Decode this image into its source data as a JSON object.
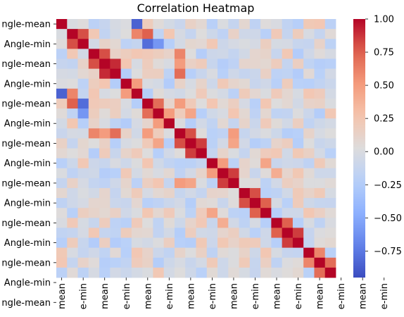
{
  "chart_data": {
    "type": "heatmap",
    "title": "Correlation Heatmap",
    "xlabel": "",
    "ylabel": "",
    "n_rows": 26,
    "n_cols": 26,
    "y_tick_labels": [
      "ngle-mean",
      "Angle-min",
      "ngle-mean",
      "Angle-min",
      "ngle-mean",
      "Angle-min",
      "ngle-mean",
      "Angle-min",
      "ngle-mean",
      "Angle-min",
      "ngle-mean",
      "Angle-min",
      "ngle-mean",
      "Angle-min",
      "ngle-mean",
      "Angle-min"
    ],
    "x_tick_labels": [
      "mean",
      "e-min",
      "mean",
      "e-min",
      "mean",
      "e-min",
      "mean",
      "e-min",
      "mean",
      "e-min",
      "mean",
      "e-min",
      "mean",
      "e-min",
      "mean",
      "e-min"
    ],
    "colorbar": {
      "min": -0.95,
      "max": 1.0,
      "ticks": [
        1.0,
        0.75,
        0.5,
        0.25,
        0.0,
        -0.25,
        -0.5,
        -0.75
      ],
      "tick_labels": [
        "1.00",
        "0.75",
        "0.50",
        "0.25",
        "0.00",
        "−0.25",
        "−0.50",
        "−0.75"
      ],
      "colormap": "coolwarm",
      "low_color": "#3b4cc0",
      "mid_color": "#dddcdc",
      "high_color": "#b40426"
    },
    "highlights": [
      [
        1,
        2,
        0.8
      ],
      [
        2,
        1,
        0.8
      ],
      [
        3,
        4,
        0.8
      ],
      [
        4,
        3,
        0.8
      ],
      [
        4,
        5,
        0.9
      ],
      [
        5,
        4,
        0.9
      ],
      [
        6,
        7,
        0.5
      ],
      [
        7,
        6,
        0.5
      ],
      [
        8,
        9,
        0.7
      ],
      [
        9,
        8,
        0.7
      ],
      [
        9,
        10,
        0.5
      ],
      [
        10,
        9,
        0.5
      ],
      [
        11,
        12,
        0.8
      ],
      [
        12,
        11,
        0.8
      ],
      [
        12,
        13,
        0.85
      ],
      [
        13,
        12,
        0.85
      ],
      [
        14,
        15,
        0.5
      ],
      [
        15,
        14,
        0.5
      ],
      [
        15,
        16,
        0.85
      ],
      [
        16,
        15,
        0.85
      ],
      [
        17,
        18,
        0.8
      ],
      [
        18,
        17,
        0.8
      ],
      [
        18,
        19,
        0.75
      ],
      [
        19,
        18,
        0.75
      ],
      [
        20,
        21,
        0.75
      ],
      [
        21,
        20,
        0.75
      ],
      [
        21,
        22,
        0.85
      ],
      [
        22,
        21,
        0.85
      ],
      [
        23,
        24,
        0.6
      ],
      [
        24,
        23,
        0.6
      ],
      [
        24,
        25,
        0.7
      ],
      [
        25,
        24,
        0.7
      ],
      [
        0,
        7,
        -0.85
      ],
      [
        7,
        0,
        -0.85
      ],
      [
        1,
        8,
        0.75
      ],
      [
        8,
        1,
        0.75
      ],
      [
        2,
        8,
        -0.8
      ],
      [
        8,
        2,
        -0.8
      ],
      [
        2,
        9,
        -0.6
      ],
      [
        9,
        2,
        -0.6
      ],
      [
        1,
        7,
        0.6
      ],
      [
        7,
        1,
        0.6
      ],
      [
        3,
        11,
        0.6
      ],
      [
        11,
        3,
        0.6
      ],
      [
        4,
        11,
        0.5
      ],
      [
        11,
        4,
        0.5
      ],
      [
        5,
        11,
        0.7
      ],
      [
        11,
        5,
        0.7
      ],
      [
        11,
        16,
        0.5
      ],
      [
        16,
        11,
        0.5
      ],
      [
        12,
        16,
        0.45
      ],
      [
        16,
        12,
        0.45
      ],
      [
        8,
        11,
        0.5
      ],
      [
        11,
        8,
        0.5
      ],
      [
        9,
        12,
        0.45
      ],
      [
        12,
        9,
        0.45
      ],
      [
        14,
        19,
        0.45
      ],
      [
        19,
        14,
        0.45
      ],
      [
        15,
        20,
        0.4
      ],
      [
        20,
        15,
        0.4
      ]
    ]
  }
}
